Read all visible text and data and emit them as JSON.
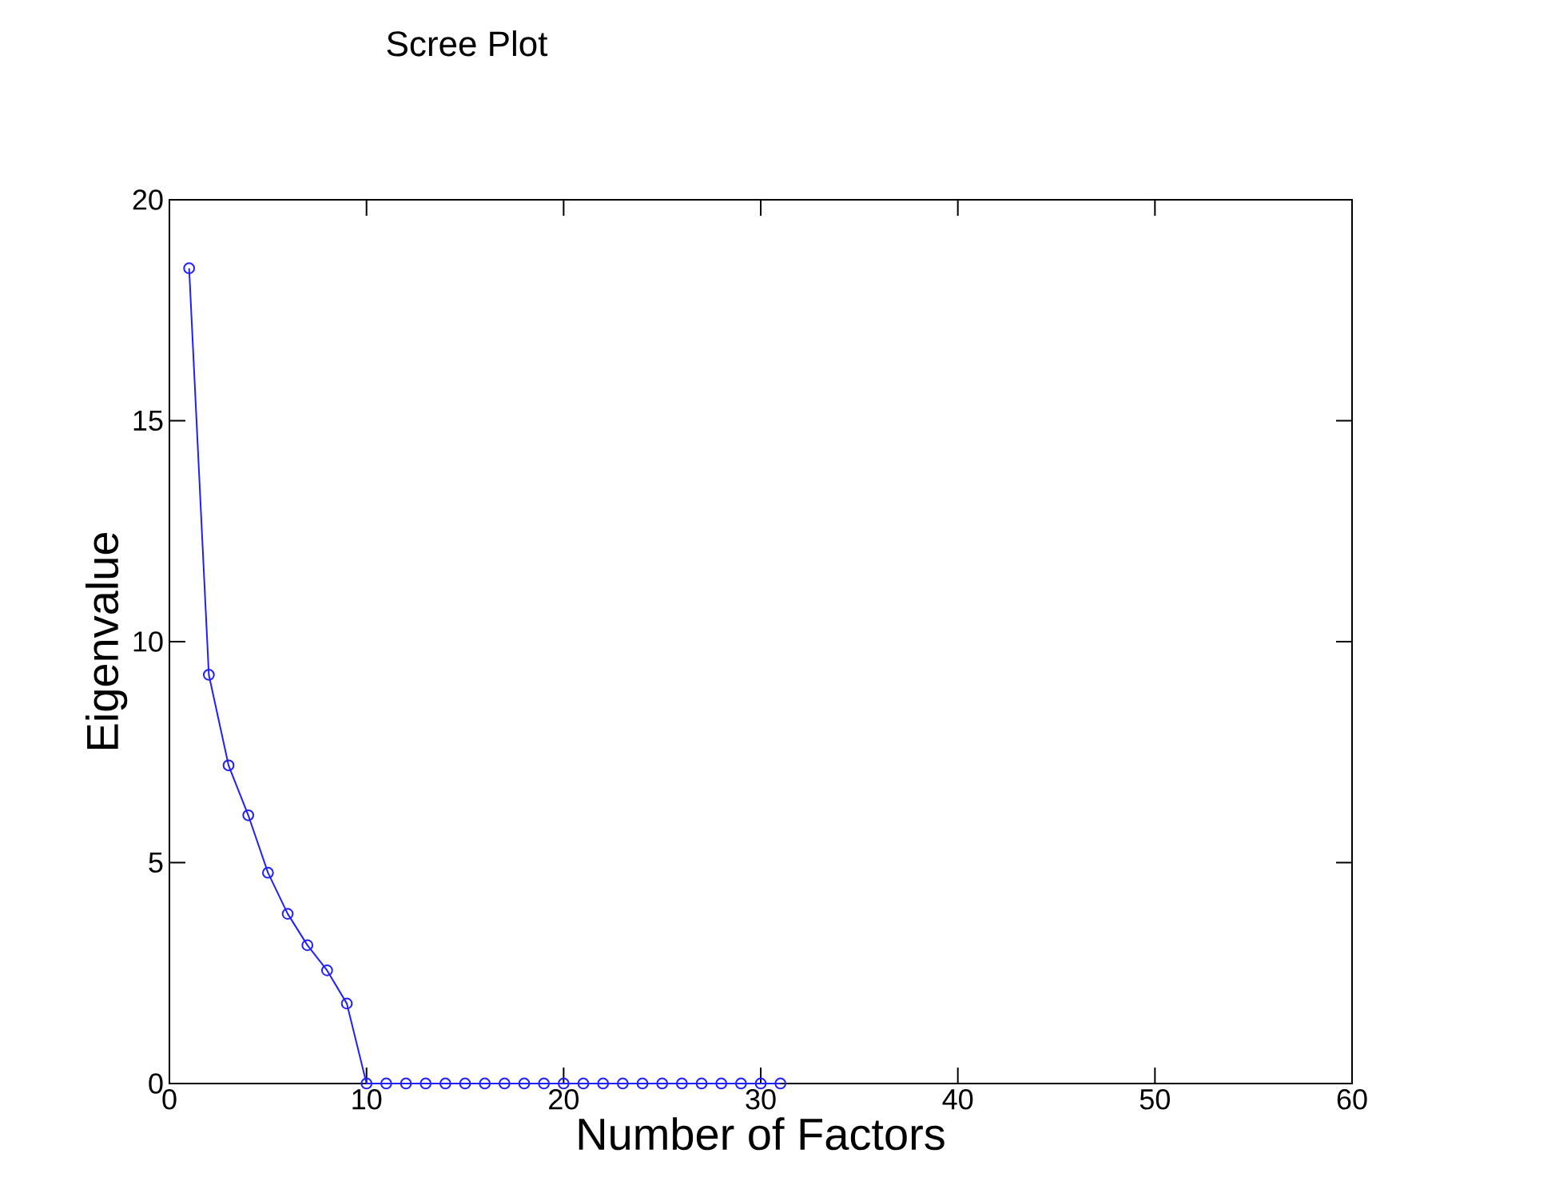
{
  "chart_data": {
    "type": "line",
    "title": "Scree Plot",
    "xlabel": "Number of Factors",
    "ylabel": "Eigenvalue",
    "x": [
      1,
      2,
      3,
      4,
      5,
      6,
      7,
      8,
      9,
      10,
      11,
      12,
      13,
      14,
      15,
      16,
      17,
      18,
      19,
      20,
      21,
      22,
      23,
      24,
      25,
      26,
      27,
      28,
      29,
      30,
      31
    ],
    "series": [
      {
        "color": "#2020ff",
        "values": [
          18.45,
          9.25,
          7.2,
          6.07,
          4.77,
          3.84,
          3.13,
          2.56,
          1.81,
          0,
          0,
          0,
          0,
          0,
          0,
          0,
          0,
          0,
          0,
          0,
          0,
          0,
          0,
          0,
          0,
          0,
          0,
          0,
          0,
          0,
          0
        ]
      }
    ],
    "xlim": [
      0,
      60
    ],
    "ylim": [
      0,
      20
    ],
    "xticks": [
      0,
      10,
      20,
      30,
      40,
      50,
      60
    ],
    "yticks": [
      0,
      5,
      10,
      15,
      20
    ],
    "marker": "circle",
    "line_style": "solid",
    "grid": false
  }
}
